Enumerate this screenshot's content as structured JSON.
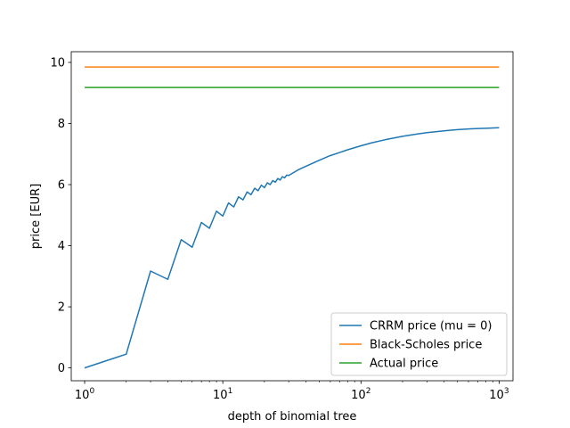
{
  "chart_data": {
    "type": "line",
    "title": "",
    "xlabel": "depth of binomial tree",
    "ylabel": "price [EUR]",
    "xscale": "log",
    "xlim": [
      0.8,
      1260
    ],
    "ylim": [
      -0.42,
      10.35
    ],
    "x_ticks": [
      {
        "value": 1,
        "base": "10",
        "exp": "0"
      },
      {
        "value": 10,
        "base": "10",
        "exp": "1"
      },
      {
        "value": 100,
        "base": "10",
        "exp": "2"
      },
      {
        "value": 1000,
        "base": "10",
        "exp": "3"
      }
    ],
    "y_ticks": [
      {
        "value": 0,
        "label": "0"
      },
      {
        "value": 2,
        "label": "2"
      },
      {
        "value": 4,
        "label": "4"
      },
      {
        "value": 6,
        "label": "6"
      },
      {
        "value": 8,
        "label": "8"
      },
      {
        "value": 10,
        "label": "10"
      }
    ],
    "grid": false,
    "legend_position": "bottom-right",
    "series": [
      {
        "name": "CRRM price (mu = 0)",
        "color": "#1f77b4",
        "x": [
          1,
          2,
          3,
          4,
          5,
          6,
          7,
          8,
          9,
          10,
          11,
          12,
          13,
          14,
          15,
          16,
          17,
          18,
          19,
          20,
          21,
          22,
          23,
          24,
          25,
          26,
          27,
          28,
          29,
          30,
          35,
          40,
          50,
          60,
          70,
          80,
          100,
          120,
          150,
          200,
          250,
          300,
          400,
          500,
          600,
          700,
          800,
          900,
          1000
        ],
        "y": [
          0.0,
          0.45,
          3.17,
          2.9,
          4.2,
          3.95,
          4.76,
          4.57,
          5.13,
          4.97,
          5.4,
          5.27,
          5.6,
          5.5,
          5.76,
          5.67,
          5.88,
          5.8,
          5.98,
          5.9,
          6.06,
          6.0,
          6.13,
          6.08,
          6.2,
          6.15,
          6.26,
          6.22,
          6.31,
          6.3,
          6.48,
          6.6,
          6.8,
          6.95,
          7.05,
          7.14,
          7.27,
          7.37,
          7.47,
          7.58,
          7.65,
          7.7,
          7.76,
          7.8,
          7.82,
          7.835,
          7.845,
          7.853,
          7.86
        ]
      },
      {
        "name": "Black-Scholes price",
        "color": "#ff7f0e",
        "x": [
          1,
          1000
        ],
        "y": [
          9.85,
          9.85
        ]
      },
      {
        "name": "Actual price",
        "color": "#2ca02c",
        "x": [
          1,
          1000
        ],
        "y": [
          9.18,
          9.18
        ]
      }
    ]
  }
}
